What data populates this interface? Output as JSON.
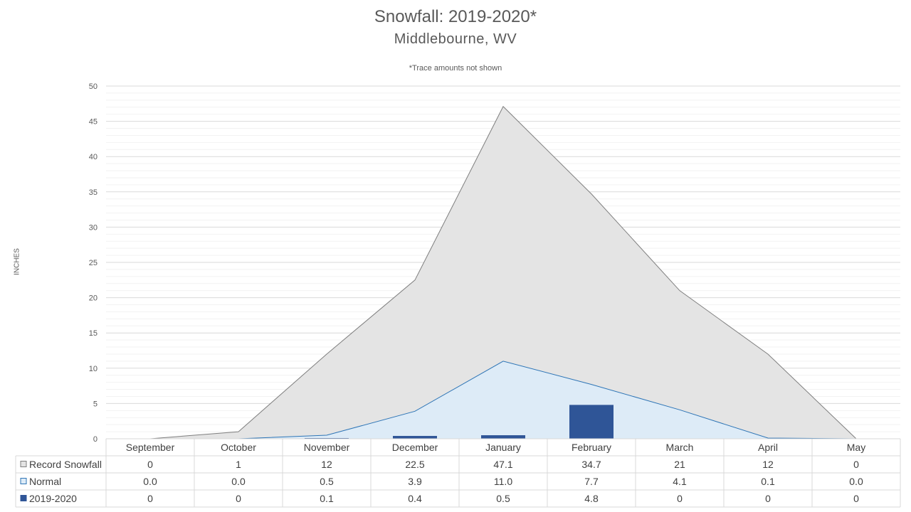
{
  "chart_data": {
    "type": "area",
    "title": "Snowfall: 2019-2020*",
    "subtitle": "Middlebourne, WV",
    "note": "*Trace amounts not shown",
    "ylabel": "INCHES",
    "ylim": [
      0,
      50
    ],
    "yticks": [
      0,
      5,
      10,
      15,
      20,
      25,
      30,
      35,
      40,
      45,
      50
    ],
    "categories": [
      "September",
      "October",
      "November",
      "December",
      "January",
      "February",
      "March",
      "April",
      "May"
    ],
    "series": [
      {
        "name": "Record Snowfall",
        "type": "area",
        "color": "#e4e4e4",
        "line_color": "#7f7f7f",
        "values": [
          0,
          1,
          12,
          22.5,
          47.1,
          34.7,
          21,
          12,
          0
        ],
        "table_values": [
          "0",
          "1",
          "12",
          "22.5",
          "47.1",
          "34.7",
          "21",
          "12",
          "0"
        ]
      },
      {
        "name": "Normal",
        "type": "area",
        "color": "#ddebf7",
        "line_color": "#2e75b6",
        "values": [
          0.0,
          0.0,
          0.5,
          3.9,
          11.0,
          7.7,
          4.1,
          0.1,
          0.0
        ],
        "table_values": [
          "0.0",
          "0.0",
          "0.5",
          "3.9",
          "11.0",
          "7.7",
          "4.1",
          "0.1",
          "0.0"
        ]
      },
      {
        "name": "2019-2020",
        "type": "bar",
        "color": "#2f5597",
        "values": [
          0,
          0,
          0.1,
          0.4,
          0.5,
          4.8,
          0,
          0,
          0
        ],
        "table_values": [
          "0",
          "0",
          "0.1",
          "0.4",
          "0.5",
          "4.8",
          "0",
          "0",
          "0"
        ]
      }
    ],
    "grid": true,
    "legend": "data-table"
  }
}
